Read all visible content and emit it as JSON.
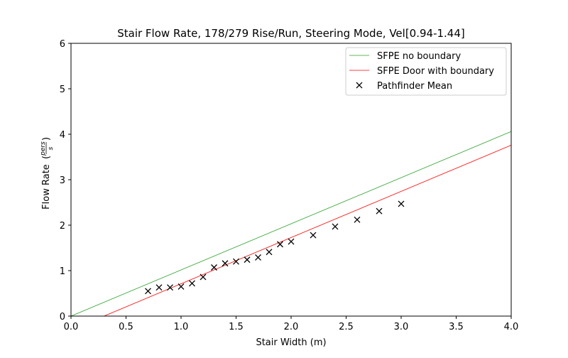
{
  "chart_data": {
    "type": "scatter",
    "title": "Stair Flow Rate, 178/279 Rise/Run, Steering Mode, Vel[0.94-1.44]",
    "xlabel": "Stair Width (m)",
    "ylabel": "Flow Rate",
    "ylabel_fraction": {
      "num": "pers",
      "den": "s"
    },
    "xlim": [
      0,
      4.0
    ],
    "ylim": [
      0,
      6
    ],
    "xticks": [
      "0.0",
      "0.5",
      "1.0",
      "1.5",
      "2.0",
      "2.5",
      "3.0",
      "3.5",
      "4.0"
    ],
    "yticks": [
      "0",
      "1",
      "2",
      "3",
      "4",
      "5",
      "6"
    ],
    "grid": false,
    "legend_position": "top-right",
    "series": [
      {
        "name": "SFPE no boundary",
        "kind": "line",
        "color": "#2ca02c",
        "x": [
          0,
          4.0
        ],
        "y": [
          0,
          4.06
        ]
      },
      {
        "name": "SFPE Door with boundary",
        "kind": "line",
        "color": "#ff0000",
        "x": [
          0.3,
          4.0
        ],
        "y": [
          0,
          3.76
        ]
      },
      {
        "name": "Pathfinder Mean",
        "kind": "scatter",
        "marker": "x",
        "color": "#000000",
        "x": [
          0.7,
          0.8,
          0.9,
          1.0,
          1.1,
          1.2,
          1.3,
          1.4,
          1.5,
          1.6,
          1.7,
          1.8,
          1.9,
          2.0,
          2.2,
          2.4,
          2.6,
          2.8,
          3.0
        ],
        "y": [
          0.55,
          0.63,
          0.63,
          0.65,
          0.72,
          0.86,
          1.07,
          1.16,
          1.2,
          1.24,
          1.29,
          1.41,
          1.58,
          1.64,
          1.78,
          1.97,
          2.12,
          2.31,
          2.47
        ]
      }
    ]
  }
}
